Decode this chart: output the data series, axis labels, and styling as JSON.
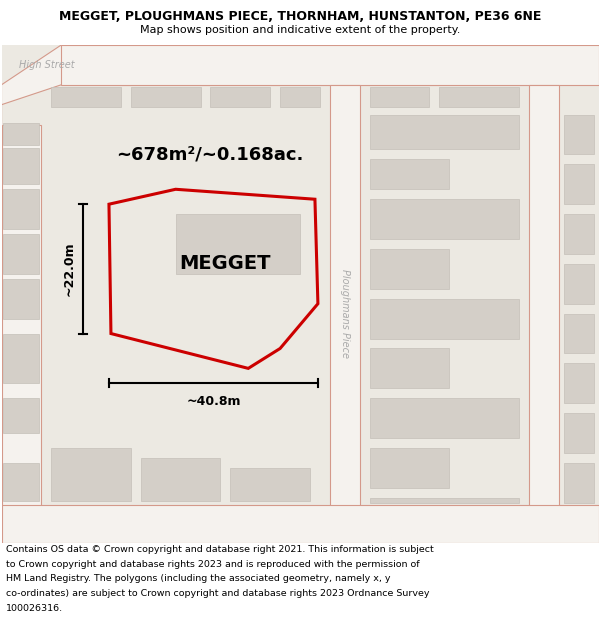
{
  "title": "MEGGET, PLOUGHMANS PIECE, THORNHAM, HUNSTANTON, PE36 6NE",
  "subtitle": "Map shows position and indicative extent of the property.",
  "footer_lines": [
    "Contains OS data © Crown copyright and database right 2021. This information is subject",
    "to Crown copyright and database rights 2023 and is reproduced with the permission of",
    "HM Land Registry. The polygons (including the associated geometry, namely x, y",
    "co-ordinates) are subject to Crown copyright and database rights 2023 Ordnance Survey",
    "100026316."
  ],
  "area_label": "~678m²/~0.168ac.",
  "property_label": "MEGGET",
  "dim_width": "~40.8m",
  "dim_height": "~22.0m",
  "map_bg": "#ece9e2",
  "road_fill": "#f5f2ee",
  "road_edge": "#d4998a",
  "building_fill": "#d4cfc8",
  "building_edge": "#c4bfb8",
  "plot_edge": "#cc0000",
  "street_label_color": "#aaaaaa",
  "title_fontsize": 9,
  "subtitle_fontsize": 8,
  "footer_fontsize": 6.8,
  "area_fontsize": 13,
  "property_fontsize": 14,
  "dim_fontsize": 9,
  "street_fontsize": 7
}
